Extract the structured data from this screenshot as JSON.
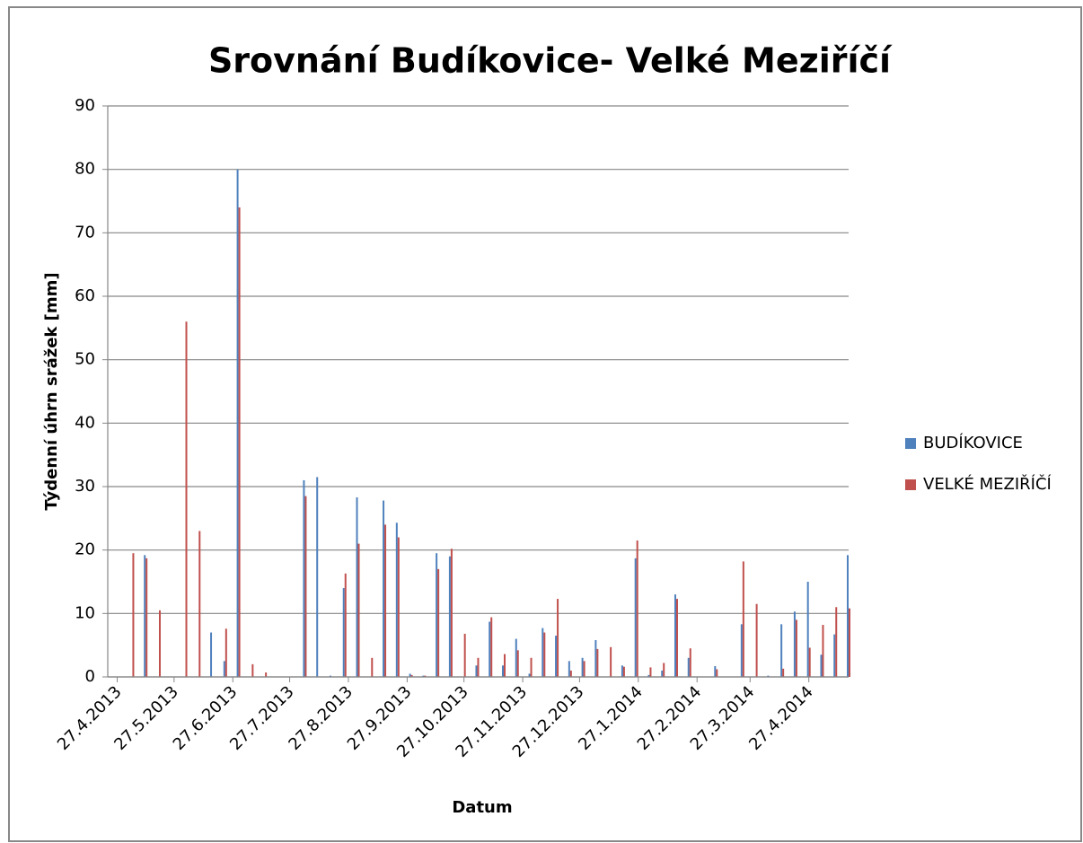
{
  "chart_data": {
    "type": "bar",
    "title": "Srovnání Budíkovice- Velké Meziříčí",
    "y_label": "Týdenní úhrn srážek [mm]",
    "x_label": "Datum",
    "x": [
      "5.5.2013",
      "12.5.2013",
      "19.5.2013",
      "26.5.2013",
      "2.6.2013",
      "9.6.2013",
      "16.6.2013",
      "23.6.2013",
      "30.6.2013",
      "7.7.2013",
      "14.7.2013",
      "21.7.2013",
      "28.7.2013",
      "4.8.2013",
      "11.8.2013",
      "18.8.2013",
      "25.8.2013",
      "1.9.2013",
      "8.9.2013",
      "15.9.2013",
      "22.9.2013",
      "29.9.2013",
      "6.10.2013",
      "13.10.2013",
      "20.10.2013",
      "27.10.2013",
      "3.11.2013",
      "10.11.2013",
      "17.11.2013",
      "24.11.2013",
      "1.12.2013",
      "8.12.2013",
      "15.12.2013",
      "22.12.2013",
      "29.12.2013",
      "5.1.2014",
      "12.1.2014",
      "19.1.2014",
      "26.1.2014",
      "2.2.2014",
      "9.2.2014",
      "16.2.2014",
      "23.2.2014",
      "2.3.2014",
      "9.3.2014",
      "16.3.2014",
      "23.3.2014",
      "30.3.2014",
      "6.4.2014",
      "13.4.2014",
      "20.4.2014",
      "27.4.2014",
      "4.5.2014",
      "11.5.2014",
      "18.5.2014"
    ],
    "series": [
      {
        "name": "BUDÍKOVICE",
        "color": "#4f81bd",
        "values": [
          0,
          19.2,
          0,
          0,
          0,
          0,
          7,
          2.5,
          80,
          0,
          0,
          0,
          0,
          31,
          31.5,
          0.2,
          14,
          28.3,
          0,
          27.8,
          24.3,
          0.5,
          0.2,
          19.5,
          19,
          0,
          1.8,
          8.7,
          1.8,
          6,
          0.5,
          7.7,
          6.5,
          2.5,
          3,
          5.8,
          0,
          1.8,
          18.7,
          0.3,
          1,
          13,
          3,
          0,
          1.7,
          0,
          8.3,
          0,
          0.2,
          8.3,
          10.3,
          15,
          3.5,
          6.7,
          19.2
        ]
      },
      {
        "name": "VELKÉ MEZIŘÍČÍ",
        "color": "#c0504d",
        "values": [
          19.5,
          18.7,
          10.5,
          0,
          56,
          23,
          0,
          7.6,
          74,
          2,
          0.7,
          0,
          0,
          28.5,
          0,
          0,
          16.3,
          21,
          3,
          24,
          22,
          0.3,
          0.2,
          17,
          20.2,
          6.8,
          3,
          9.4,
          3.6,
          4.2,
          3,
          7,
          12.3,
          1,
          2.5,
          4.4,
          4.7,
          1.6,
          21.5,
          1.5,
          2.2,
          12.3,
          4.5,
          0,
          1.2,
          0,
          18.2,
          11.5,
          0,
          1.3,
          9,
          4.6,
          8.2,
          11,
          10.8
        ]
      }
    ],
    "xlim": [
      "22.4.2013",
      "18.5.2014"
    ],
    "xticks": [
      "27.4.2013",
      "27.5.2013",
      "27.6.2013",
      "27.7.2013",
      "27.8.2013",
      "27.9.2013",
      "27.10.2013",
      "27.11.2013",
      "27.12.2013",
      "27.1.2014",
      "27.2.2014",
      "27.3.2014",
      "27.4.2014"
    ],
    "ylim": [
      0,
      90
    ],
    "yticks": [
      0,
      10,
      20,
      30,
      40,
      50,
      60,
      70,
      80,
      90
    ],
    "grid": true,
    "legend": "right"
  }
}
